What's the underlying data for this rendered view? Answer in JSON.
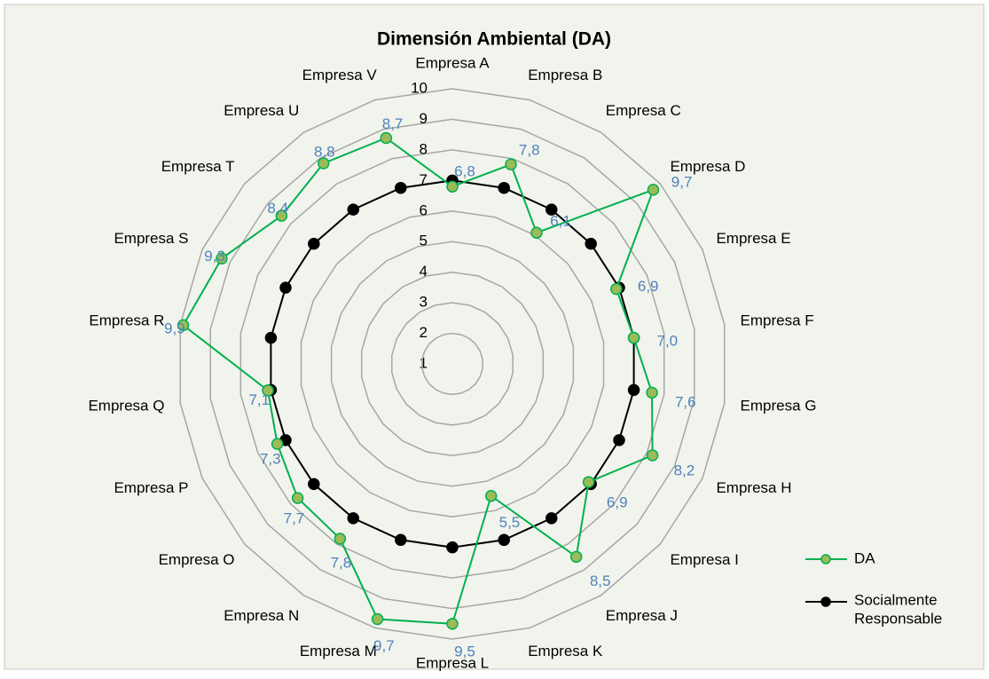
{
  "chart_data": {
    "type": "radar",
    "title": "Dimensión Ambiental (DA)",
    "categories": [
      "Empresa A",
      "Empresa B",
      "Empresa C",
      "Empresa D",
      "Empresa E",
      "Empresa F",
      "Empresa G",
      "Empresa H",
      "Empresa I",
      "Empresa J",
      "Empresa K",
      "Empresa L",
      "Empresa M",
      "Empresa N",
      "Empresa O",
      "Empresa P",
      "Empresa Q",
      "Empresa R",
      "Empresa S",
      "Empresa T",
      "Empresa U",
      "Empresa V"
    ],
    "series": [
      {
        "name": "DA",
        "color": "#00b050",
        "marker_color": "#9bbb59",
        "values": [
          6.8,
          7.8,
          6.1,
          9.7,
          6.9,
          7.0,
          7.6,
          8.2,
          6.9,
          8.5,
          5.5,
          9.5,
          9.7,
          7.8,
          7.7,
          7.3,
          7.1,
          9.9,
          9.3,
          8.4,
          8.8,
          8.7
        ],
        "value_labels": [
          "6,8",
          "7,8",
          "6,1",
          "9,7",
          "6,9",
          "7,0",
          "7,6",
          "8,2",
          "6,9",
          "8,5",
          "5,5",
          "9,5",
          "9,7",
          "7,8",
          "7,7",
          "7,3",
          "7,1",
          "9,9",
          "9,3",
          "8,4",
          "8,8",
          "8,7"
        ]
      },
      {
        "name": "Socialmente Responsable",
        "color": "#000000",
        "marker_color": "#000000",
        "values": [
          7,
          7,
          7,
          7,
          7,
          7,
          7,
          7,
          7,
          7,
          7,
          7,
          7,
          7,
          7,
          7,
          7,
          7,
          7,
          7,
          7,
          7
        ]
      }
    ],
    "ylim": [
      1,
      10
    ],
    "yticks": [
      1,
      2,
      3,
      4,
      5,
      6,
      7,
      8,
      9,
      10
    ],
    "grid": true,
    "legend": "right"
  }
}
